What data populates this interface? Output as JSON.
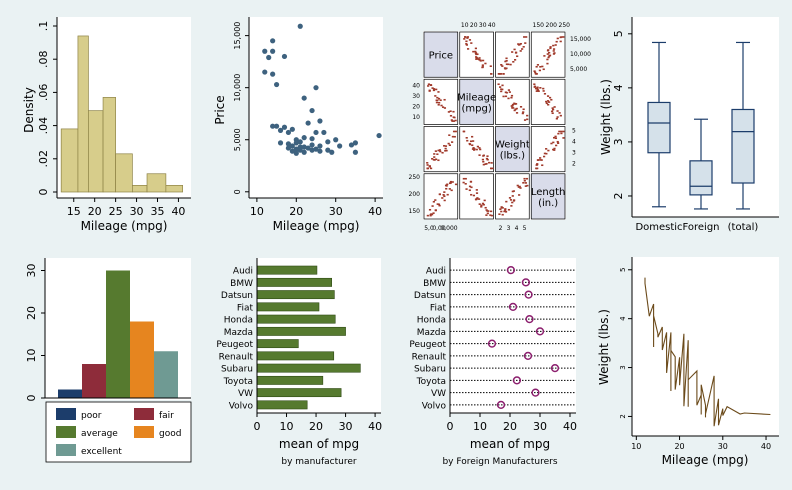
{
  "colors": {
    "frame": "#eaf2f3",
    "plot": "#ffffff",
    "hist": "#d7cd8b",
    "dot": "#3e627f",
    "box": "#d5e1ea",
    "boxline": "#1c3d6b",
    "green": "#567a2f",
    "pink": "#8c1f6e",
    "brown": "#6b4a1a",
    "matrix_pt": "#a0392a",
    "poor": "#1c3d6b",
    "fair": "#8e2c3a",
    "average": "#567a2f",
    "good": "#e6851f",
    "excellent": "#6f9a93"
  },
  "chart_data": [
    {
      "type": "bar",
      "subtype": "histogram",
      "xlabel": "Mileage (mpg)",
      "ylabel": "Density",
      "xticks": [
        15,
        20,
        25,
        30,
        35,
        40
      ],
      "yticks": [
        0,
        0.02,
        0.04,
        0.06,
        0.08,
        0.1
      ],
      "ytick_labels": [
        "0",
        ".02",
        ".04",
        ".06",
        ".08",
        ".1"
      ],
      "xlim": [
        11,
        43
      ],
      "ylim": [
        0,
        0.1
      ],
      "bins": [
        {
          "from": 12,
          "to": 16,
          "density": 0.038
        },
        {
          "from": 16,
          "to": 18.5,
          "density": 0.094
        },
        {
          "from": 18.5,
          "to": 22,
          "density": 0.049
        },
        {
          "from": 22,
          "to": 25,
          "density": 0.057
        },
        {
          "from": 25,
          "to": 29,
          "density": 0.023
        },
        {
          "from": 29,
          "to": 32.5,
          "density": 0.004
        },
        {
          "from": 32.5,
          "to": 37,
          "density": 0.011
        },
        {
          "from": 37,
          "to": 41,
          "density": 0.004
        }
      ]
    },
    {
      "type": "scatter",
      "xlabel": "Mileage (mpg)",
      "ylabel": "Price",
      "xticks": [
        10,
        20,
        30,
        40
      ],
      "yticks": [
        0,
        5000,
        10000,
        15000
      ],
      "ytick_labels": [
        "0",
        "5,000",
        "10,000",
        "15,000"
      ],
      "xlim": [
        8,
        42
      ],
      "ylim": [
        -500,
        16500
      ],
      "points": [
        [
          12,
          13500
        ],
        [
          12,
          11500
        ],
        [
          13,
          12900
        ],
        [
          14,
          14500
        ],
        [
          14,
          13500
        ],
        [
          14,
          11300
        ],
        [
          14,
          6300
        ],
        [
          15,
          10300
        ],
        [
          15,
          6300
        ],
        [
          16,
          5900
        ],
        [
          16,
          4700
        ],
        [
          17,
          13000
        ],
        [
          17,
          6200
        ],
        [
          18,
          5700
        ],
        [
          18,
          4600
        ],
        [
          18,
          4200
        ],
        [
          19,
          6000
        ],
        [
          19,
          4400
        ],
        [
          19,
          3900
        ],
        [
          20,
          5000
        ],
        [
          20,
          4700
        ],
        [
          20,
          4100
        ],
        [
          20,
          3700
        ],
        [
          21,
          15900
        ],
        [
          21,
          4800
        ],
        [
          21,
          4300
        ],
        [
          21,
          4000
        ],
        [
          22,
          9000
        ],
        [
          22,
          5200
        ],
        [
          22,
          4300
        ],
        [
          22,
          3800
        ],
        [
          23,
          6600
        ],
        [
          23,
          4200
        ],
        [
          24,
          7800
        ],
        [
          24,
          5100
        ],
        [
          24,
          4500
        ],
        [
          24,
          4000
        ],
        [
          25,
          10000
        ],
        [
          25,
          5700
        ],
        [
          25,
          4100
        ],
        [
          26,
          6800
        ],
        [
          26,
          4400
        ],
        [
          26,
          3900
        ],
        [
          27,
          5700
        ],
        [
          28,
          4800
        ],
        [
          28,
          4000
        ],
        [
          29,
          3800
        ],
        [
          30,
          5000
        ],
        [
          31,
          4400
        ],
        [
          34,
          4500
        ],
        [
          35,
          4700
        ],
        [
          35,
          3800
        ],
        [
          41,
          5400
        ]
      ]
    },
    {
      "type": "scatter",
      "subtype": "matrix",
      "variables": [
        "Price",
        "Mileage (mpg)",
        "Weight (lbs.)",
        "Length (in.)"
      ],
      "top_ticks_col2": [
        "10",
        "20",
        "30",
        "40"
      ],
      "top_ticks_col4": [
        "150",
        "200",
        "250"
      ],
      "right_ticks_row1": [
        "15,000",
        "10,000",
        "5,000"
      ],
      "right_ticks_row3": [
        "5",
        "4",
        "3",
        "2"
      ],
      "left_ticks_row2": [
        "40",
        "30",
        "20",
        "10"
      ],
      "left_ticks_row4": [
        "250",
        "200",
        "150"
      ],
      "bottom_ticks_col1": [
        "5,0",
        "0,00",
        "0,000"
      ],
      "bottom_ticks_col3": [
        "2",
        "3",
        "4",
        "5"
      ]
    },
    {
      "type": "box",
      "ylabel": "Weight (lbs.)",
      "yticks": [
        2,
        3,
        4,
        5
      ],
      "ylim": [
        1.5,
        5.2
      ],
      "categories": [
        "Domestic",
        "Foreign",
        "(total)"
      ],
      "boxes": [
        {
          "min": 1.8,
          "q1": 2.8,
          "median": 3.35,
          "q3": 3.73,
          "max": 4.84
        },
        {
          "min": 1.76,
          "q1": 2.02,
          "median": 2.18,
          "q3": 2.65,
          "max": 3.42
        },
        {
          "min": 1.76,
          "q1": 2.24,
          "median": 3.19,
          "q3": 3.6,
          "max": 4.84
        }
      ]
    },
    {
      "type": "bar",
      "yticks": [
        0,
        10,
        20,
        30
      ],
      "ylim": [
        0,
        32
      ],
      "categories": [
        "poor",
        "fair",
        "average",
        "good",
        "excellent"
      ],
      "values": [
        2,
        8,
        30,
        18,
        11
      ],
      "legend": [
        "poor",
        "fair",
        "average",
        "good",
        "excellent"
      ]
    },
    {
      "type": "bar",
      "orientation": "horizontal",
      "xlabel": "mean of mpg",
      "note": "by manufacturer",
      "xticks": [
        0,
        10,
        20,
        30,
        40
      ],
      "xlim": [
        0,
        42
      ],
      "categories": [
        "Audi",
        "BMW",
        "Datsun",
        "Fiat",
        "Honda",
        "Mazda",
        "Peugeot",
        "Renault",
        "Subaru",
        "Toyota",
        "VW",
        "Volvo"
      ],
      "values": [
        20.3,
        25.3,
        26.2,
        21.0,
        26.5,
        30.0,
        14.0,
        26.0,
        35.0,
        22.3,
        28.5,
        17.0
      ]
    },
    {
      "type": "scatter",
      "subtype": "dot",
      "xlabel": "mean of mpg",
      "note": "by Foreign Manufacturers",
      "xticks": [
        0,
        10,
        20,
        30,
        40
      ],
      "xlim": [
        0,
        42
      ],
      "categories": [
        "Audi",
        "BMW",
        "Datsun",
        "Fiat",
        "Honda",
        "Mazda",
        "Peugeot",
        "Renault",
        "Subaru",
        "Toyota",
        "VW",
        "Volvo"
      ],
      "values": [
        20.3,
        25.3,
        26.2,
        21.0,
        26.5,
        30.0,
        14.0,
        26.0,
        35.0,
        22.3,
        28.5,
        17.0
      ]
    },
    {
      "type": "line",
      "xlabel": "Mileage (mpg)",
      "ylabel": "Weight (lbs.)",
      "xticks": [
        10,
        20,
        30,
        40
      ],
      "yticks": [
        2,
        3,
        4,
        5
      ],
      "xlim": [
        9,
        43
      ],
      "ylim": [
        1.6,
        5.2
      ],
      "points": [
        [
          12,
          4.84
        ],
        [
          12,
          4.72
        ],
        [
          13,
          4.05
        ],
        [
          14,
          4.3
        ],
        [
          14,
          3.42
        ],
        [
          14,
          3.92
        ],
        [
          14,
          4.06
        ],
        [
          15,
          3.69
        ],
        [
          15,
          3.62
        ],
        [
          16,
          3.83
        ],
        [
          16,
          3.36
        ],
        [
          17,
          3.72
        ],
        [
          17,
          3.61
        ],
        [
          17,
          2.89
        ],
        [
          18,
          3.72
        ],
        [
          18,
          3.22
        ],
        [
          18,
          2.52
        ],
        [
          18,
          3.35
        ],
        [
          19,
          3.22
        ],
        [
          19,
          2.67
        ],
        [
          19,
          2.87
        ],
        [
          19,
          2.55
        ],
        [
          20,
          3.21
        ],
        [
          20,
          2.98
        ],
        [
          20,
          2.64
        ],
        [
          21,
          3.69
        ],
        [
          21,
          2.75
        ],
        [
          21,
          2.21
        ],
        [
          22,
          3.56
        ],
        [
          22,
          2.2
        ],
        [
          22,
          2.75
        ],
        [
          24,
          2.93
        ],
        [
          24,
          2.34
        ],
        [
          24,
          2.23
        ],
        [
          25,
          2.44
        ],
        [
          25,
          2.04
        ],
        [
          25,
          2.65
        ],
        [
          26,
          2.23
        ],
        [
          26,
          1.98
        ],
        [
          26,
          2.05
        ],
        [
          28,
          2.83
        ],
        [
          28,
          1.86
        ],
        [
          28,
          1.8
        ],
        [
          29,
          2.36
        ],
        [
          29,
          1.82
        ],
        [
          30,
          2.16
        ],
        [
          30,
          2.02
        ],
        [
          31,
          2.2
        ],
        [
          34,
          2.05
        ],
        [
          35,
          2.07
        ],
        [
          41,
          2.04
        ]
      ]
    }
  ]
}
